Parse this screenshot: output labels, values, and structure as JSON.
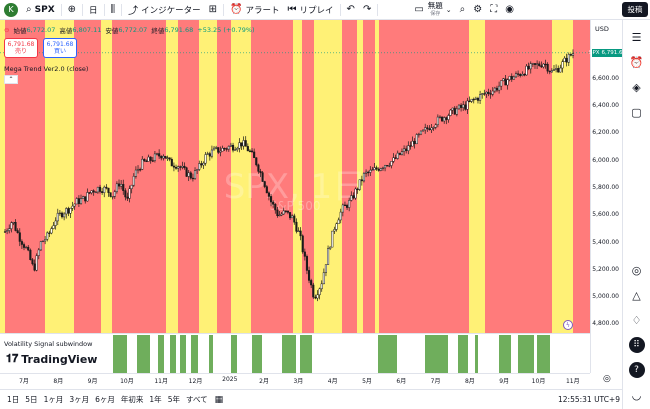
{
  "topbar": {
    "avatar_letter": "K",
    "symbol": "SPX",
    "interval": "日",
    "indicators_label": "インジケーター",
    "alert_label": "アラート",
    "replay_label": "リプレイ",
    "layout_name": "無題",
    "layout_status": "保存",
    "post_label": "投稿"
  },
  "legend": {
    "open_label": "始値",
    "open": "6,772.07",
    "high_label": "高値",
    "high": "6,807.11",
    "low_label": "安値",
    "low": "6,772.07",
    "close_label": "終値",
    "close": "6,791.68",
    "change": "+53.25 (+0.79%)"
  },
  "trade": {
    "sell_price": "6,791.68",
    "sell_label": "売り",
    "buy_price": "6,791.68",
    "buy_label": "買い"
  },
  "indicator_label": "Mega Trend Ver2.0 (close)",
  "subwindow_label": "Volatility Signal subwindow",
  "logo_text": "TradingView",
  "watermark": {
    "line1": "SPX, 1日",
    "line2": "S&P 500"
  },
  "price_axis": {
    "currency": "USD",
    "current_tag": "SPX",
    "current_value": "6,791.68",
    "labels": [
      "6,600.00",
      "6,400.00",
      "6,200.00",
      "6,000.00",
      "5,800.00",
      "5,600.00",
      "5,400.00",
      "5,200.00",
      "5,000.00",
      "4,800.00"
    ]
  },
  "time_axis": [
    "7月",
    "8月",
    "9月",
    "10月",
    "11月",
    "12月",
    "2025",
    "2月",
    "3月",
    "4月",
    "5月",
    "6月",
    "7月",
    "8月",
    "9月",
    "10月",
    "11月"
  ],
  "bottombar": {
    "ranges": [
      "1日",
      "5日",
      "1ヶ月",
      "3ヶ月",
      "6ヶ月",
      "年初来",
      "1年",
      "5年",
      "すべて"
    ],
    "clock": "12:55:31 UTC+9"
  },
  "colors": {
    "bear_bg": "#ff7b7b",
    "bull_bg": "#fff176",
    "signal_green": "#6fae5c",
    "candle": "#1a1a1a"
  },
  "chart_data": {
    "type": "candlestick",
    "ylim": [
      4700,
      6900
    ],
    "months": [
      "7月",
      "8月",
      "9月",
      "10月",
      "11月",
      "12月",
      "2025",
      "2月",
      "3月",
      "4月",
      "5月",
      "6月",
      "7月",
      "8月",
      "9月",
      "10月",
      "11月"
    ],
    "close_path": [
      5480,
      5560,
      5440,
      5350,
      5200,
      5400,
      5450,
      5570,
      5620,
      5650,
      5700,
      5720,
      5780,
      5800,
      5790,
      5750,
      5850,
      5700,
      5900,
      5980,
      6000,
      6030,
      6050,
      5980,
      5970,
      5920,
      5880,
      5950,
      6040,
      6070,
      6080,
      6100,
      6110,
      6130,
      6070,
      5980,
      5850,
      5700,
      5600,
      5620,
      5580,
      5450,
      5200,
      5000,
      5100,
      5350,
      5550,
      5650,
      5700,
      5800,
      5900,
      5920,
      5950,
      5980,
      6000,
      6050,
      6090,
      6150,
      6200,
      6250,
      6290,
      6320,
      6350,
      6380,
      6400,
      6440,
      6470,
      6500,
      6520,
      6560,
      6600,
      6620,
      6650,
      6680,
      6700,
      6720,
      6650,
      6680,
      6740,
      6790
    ],
    "bull_zones": [
      [
        0.0,
        0.0
      ]
    ],
    "current": 6791.68
  }
}
